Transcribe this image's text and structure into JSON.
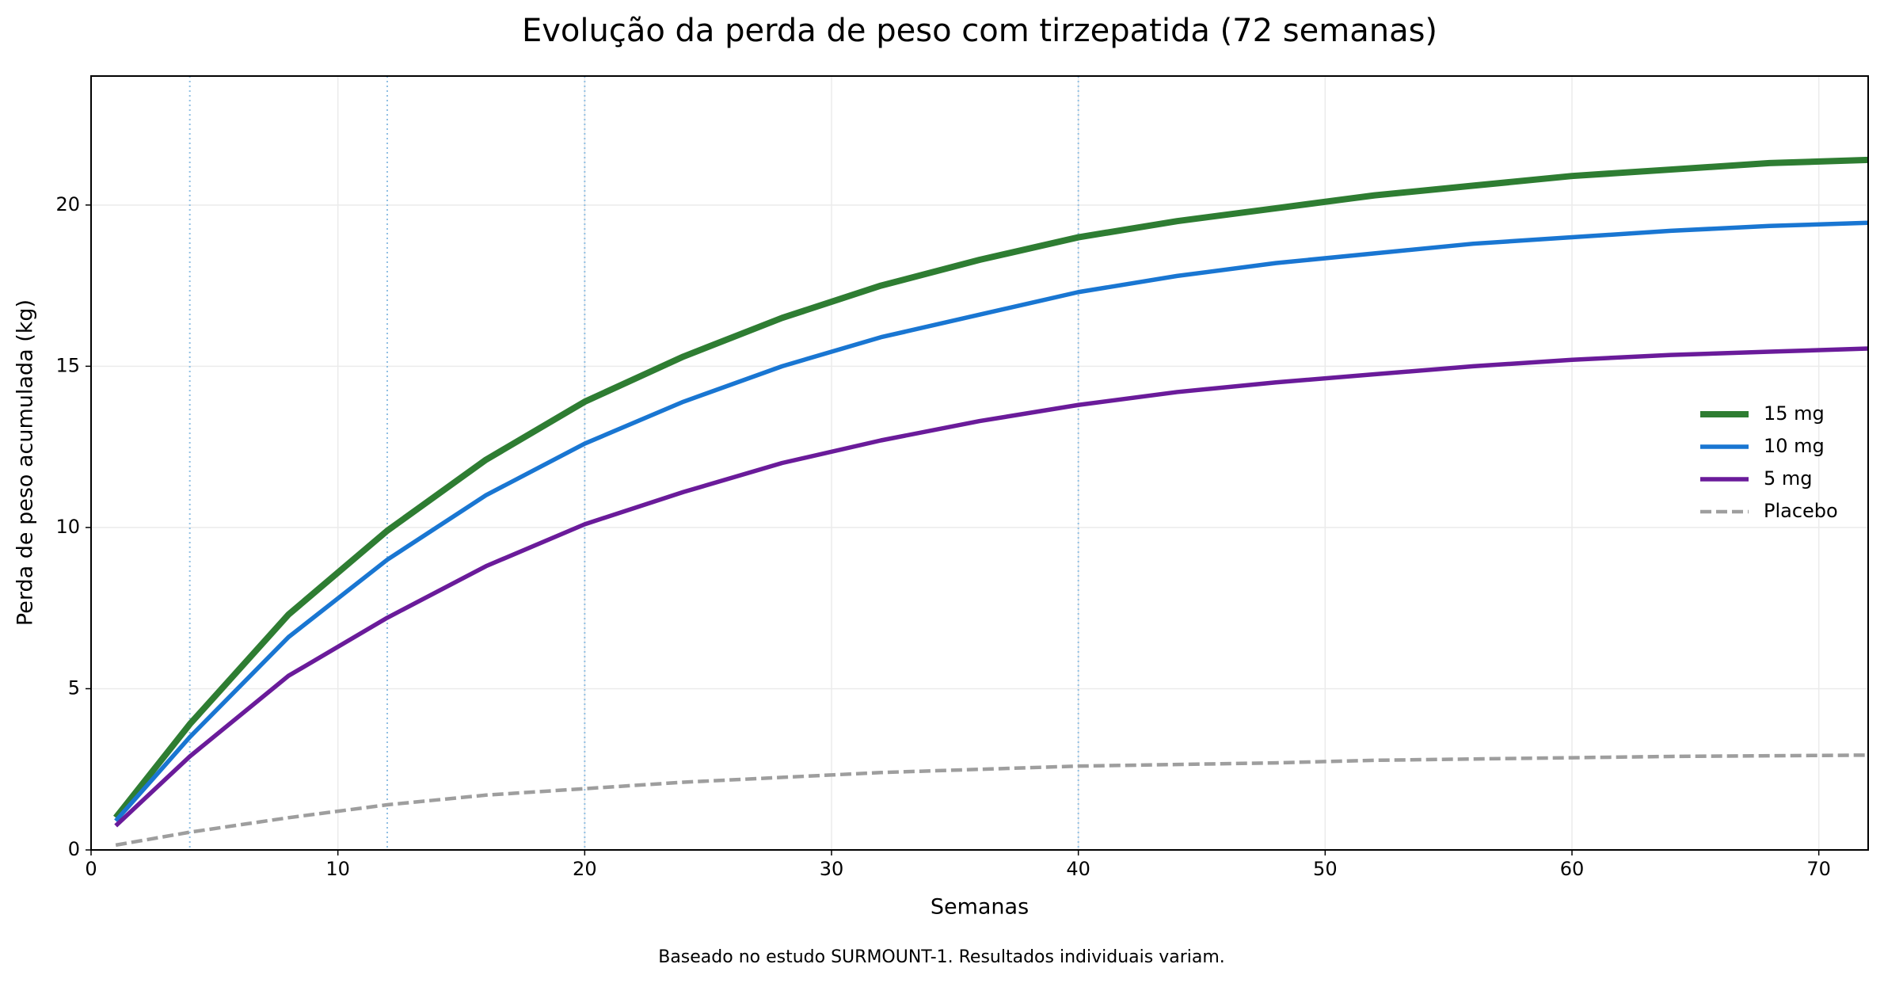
{
  "chart_data": {
    "type": "line",
    "title": "Evolução da perda de peso com tirzepatida (72 semanas)",
    "x_label": "Semanas",
    "y_label": "Perda de peso acumulada (kg)",
    "footnote": "Baseado no estudo SURMOUNT-1. Resultados individuais variam.",
    "x": [
      1,
      4,
      8,
      12,
      16,
      20,
      24,
      28,
      32,
      36,
      40,
      44,
      48,
      52,
      56,
      60,
      64,
      68,
      72
    ],
    "series": [
      {
        "name": "15 mg",
        "color": "#2e7d32",
        "style": "solid",
        "values": [
          1.0,
          3.9,
          7.3,
          9.9,
          12.1,
          13.9,
          15.3,
          16.5,
          17.5,
          18.3,
          19.0,
          19.5,
          19.9,
          20.3,
          20.6,
          20.9,
          21.1,
          21.3,
          21.4
        ]
      },
      {
        "name": "10 mg",
        "color": "#1976d2",
        "style": "solid",
        "values": [
          0.9,
          3.5,
          6.6,
          9.0,
          11.0,
          12.6,
          13.9,
          15.0,
          15.9,
          16.6,
          17.3,
          17.8,
          18.2,
          18.5,
          18.8,
          19.0,
          19.2,
          19.35,
          19.45
        ]
      },
      {
        "name": "5 mg",
        "color": "#6a1b9a",
        "style": "solid",
        "values": [
          0.75,
          2.9,
          5.4,
          7.2,
          8.8,
          10.1,
          11.1,
          12.0,
          12.7,
          13.3,
          13.8,
          14.2,
          14.5,
          14.75,
          15.0,
          15.2,
          15.35,
          15.45,
          15.55
        ]
      },
      {
        "name": "Placebo",
        "color": "#9e9e9e",
        "style": "dashed",
        "values": [
          0.15,
          0.55,
          1.0,
          1.4,
          1.7,
          1.9,
          2.1,
          2.25,
          2.4,
          2.5,
          2.6,
          2.65,
          2.7,
          2.78,
          2.82,
          2.86,
          2.9,
          2.92,
          2.94
        ]
      }
    ],
    "xlim": [
      0,
      72
    ],
    "xticks": [
      0,
      10,
      20,
      30,
      40,
      50,
      60,
      70
    ],
    "ylim": [
      0,
      24
    ],
    "yticks": [
      0,
      5,
      10,
      15,
      20
    ],
    "vlines": [
      4,
      12,
      20,
      40
    ],
    "vline_color": "#90bfe3",
    "grid": true,
    "legend": "center right"
  }
}
